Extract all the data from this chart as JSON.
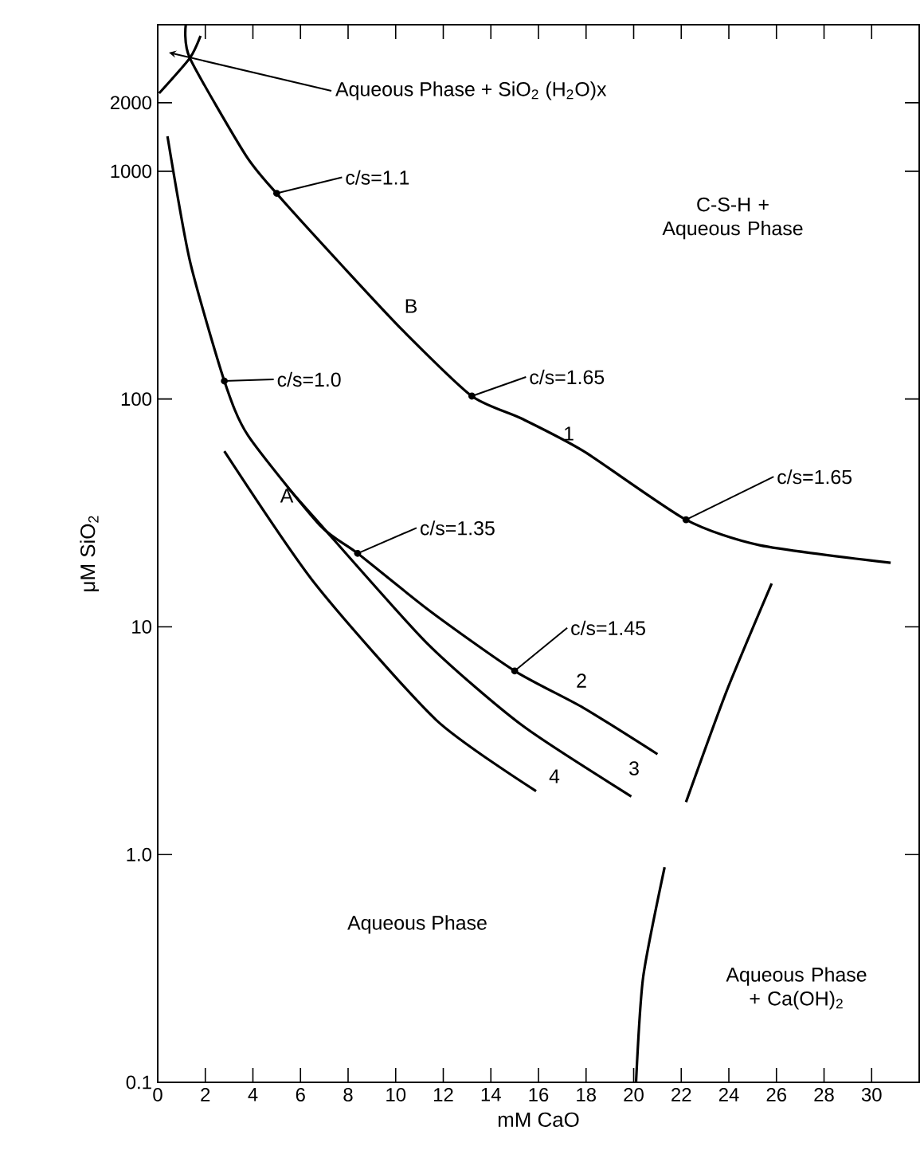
{
  "chart_data": {
    "type": "line",
    "xlabel": "mM CaO",
    "ylabel": "μM SiO$_{2}$",
    "log": "y",
    "xlim": [
      0,
      32
    ],
    "ylim": [
      0.1,
      4400
    ],
    "xticks": [
      0,
      2,
      4,
      6,
      8,
      10,
      12,
      14,
      16,
      18,
      20,
      22,
      24,
      26,
      28,
      30
    ],
    "yticks": [
      {
        "value": 0.1,
        "label": "0.1"
      },
      {
        "value": 1,
        "label": "1.0"
      },
      10,
      100,
      1000,
      2000
    ],
    "marker": "none",
    "line_style": "solid",
    "series": [
      {
        "color": "#000000",
        "x": [
          1.18,
          1.35,
          3.7,
          5.0,
          7.8,
          10.3,
          13.2,
          15.3,
          17.9,
          22.2,
          25.3,
          30.8
        ],
        "values": [
          4400,
          3140,
          1175,
          798,
          380,
          200,
          103,
          82,
          59,
          29.5,
          22.8,
          19.1
        ]
      },
      {
        "color": "#000000",
        "x": [
          0.41,
          1.35,
          2.8,
          3.8,
          6.8,
          8.4,
          11.5,
          15.0,
          17.9,
          21.0
        ],
        "values": [
          1425,
          405,
          120,
          69,
          28,
          21,
          11.6,
          6.4,
          4.4,
          2.76
        ]
      },
      {
        "color": "#000000",
        "x": [
          5.45,
          6.6,
          11.3,
          15.3,
          19.9
        ],
        "values": [
          41,
          30,
          8.5,
          3.7,
          1.8
        ]
      },
      {
        "color": "#000000",
        "x": [
          2.8,
          6.6,
          11.7,
          15.9
        ],
        "values": [
          59,
          15.5,
          3.9,
          1.9
        ]
      },
      {
        "color": "#000000",
        "x": [
          20.1,
          20.4,
          21.3
        ],
        "values": [
          0.1,
          0.29,
          0.88
        ]
      },
      {
        "color": "#000000",
        "x": [
          22.2,
          23.9,
          25.8
        ],
        "values": [
          1.7,
          5.2,
          15.5
        ]
      },
      {
        "color": "#000000",
        "x": [
          0.06,
          1.35,
          1.8
        ],
        "values": [
          2200,
          3140,
          3930
        ]
      }
    ],
    "annotations": [
      "Aqueous Phase + SiO$_{2}$ (H$_{2}$O)x",
      {
        "text": "c/s=1.1",
        "x": 5.0,
        "y": 800
      },
      {
        "text": "c/s=1.0",
        "x": 2.8,
        "y": 120
      },
      {
        "text": "c/s=1.65",
        "x": 13.2,
        "y": 103
      },
      {
        "text": "c/s=1.65",
        "x": 22.2,
        "y": 29.5
      },
      {
        "text": "c/s=1.35",
        "x": 8.4,
        "y": 21
      },
      {
        "text": "c/s=1.45",
        "x": 15.0,
        "y": 6.4
      },
      "B",
      "1",
      "A",
      "2",
      "3",
      "4",
      "C-S-H + Aqueous Phase",
      "Aqueous Phase",
      "Aqueous Phase + Ca(OH)$_{2}$"
    ]
  }
}
